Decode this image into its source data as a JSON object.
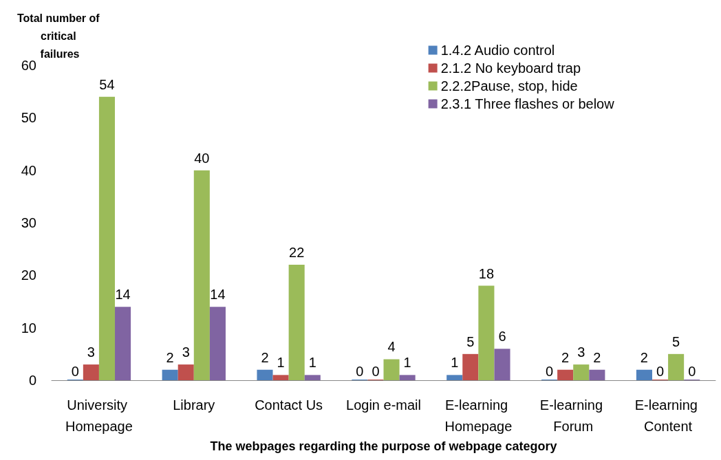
{
  "chart_data": {
    "type": "bar",
    "xlabel": "The webpages regarding the purpose of webpage category",
    "ylabel": "Total number of critical failures",
    "categories": [
      "University Homepage",
      "Library",
      "Contact Us",
      "Login e-mail",
      "E-learning Homepage",
      "E-learning Forum",
      "E-learning Content"
    ],
    "series": [
      {
        "name": "1.4.2 Audio control",
        "color": "#4f81bd",
        "values": [
          0,
          2,
          2,
          0,
          1,
          0,
          2
        ]
      },
      {
        "name": "2.1.2 No keyboard trap",
        "color": "#c0504d",
        "values": [
          3,
          3,
          1,
          0,
          5,
          2,
          0
        ]
      },
      {
        "name": "2.2.2Pause, stop, hide",
        "color": "#9bbb59",
        "values": [
          54,
          40,
          22,
          4,
          18,
          3,
          5
        ]
      },
      {
        "name": "2.3.1 Three flashes or below",
        "color": "#8064a2",
        "values": [
          14,
          14,
          1,
          1,
          6,
          2,
          0
        ]
      }
    ],
    "ylim": [
      0,
      60
    ],
    "yticks": [
      0,
      10,
      20,
      30,
      40,
      50,
      60
    ],
    "grid": false,
    "legend": "top right",
    "data_labels": true
  }
}
